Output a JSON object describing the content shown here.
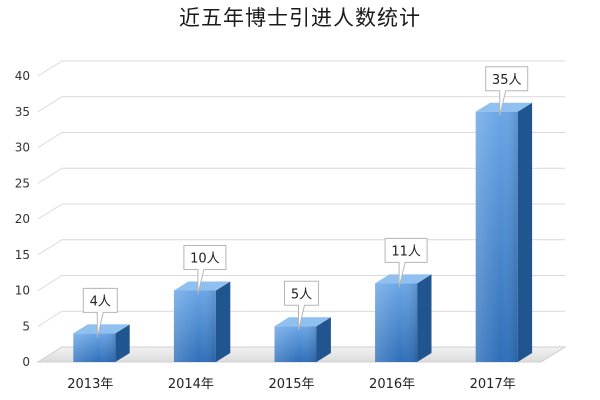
{
  "chart_data": {
    "type": "bar",
    "title": "近五年博士引进人数统计",
    "categories": [
      "2013年",
      "2014年",
      "2015年",
      "2016年",
      "2017年"
    ],
    "values": [
      4,
      10,
      5,
      11,
      35
    ],
    "data_labels": [
      "4人",
      "10人",
      "5人",
      "11人",
      "35人"
    ],
    "y_ticks": [
      "0",
      "5",
      "10",
      "15",
      "20",
      "25",
      "30",
      "35",
      "40"
    ],
    "ylim": [
      0,
      40
    ],
    "grid": true,
    "legend": "none",
    "style": "3d-column",
    "colors": {
      "bar_front_top": "#6aa6e6",
      "bar_front_bottom": "#2f6fb9",
      "bar_side": "#21558f",
      "bar_top": "#8fc0f0",
      "grid": "#d9d9d9",
      "floor": "#e6e6e6"
    }
  }
}
